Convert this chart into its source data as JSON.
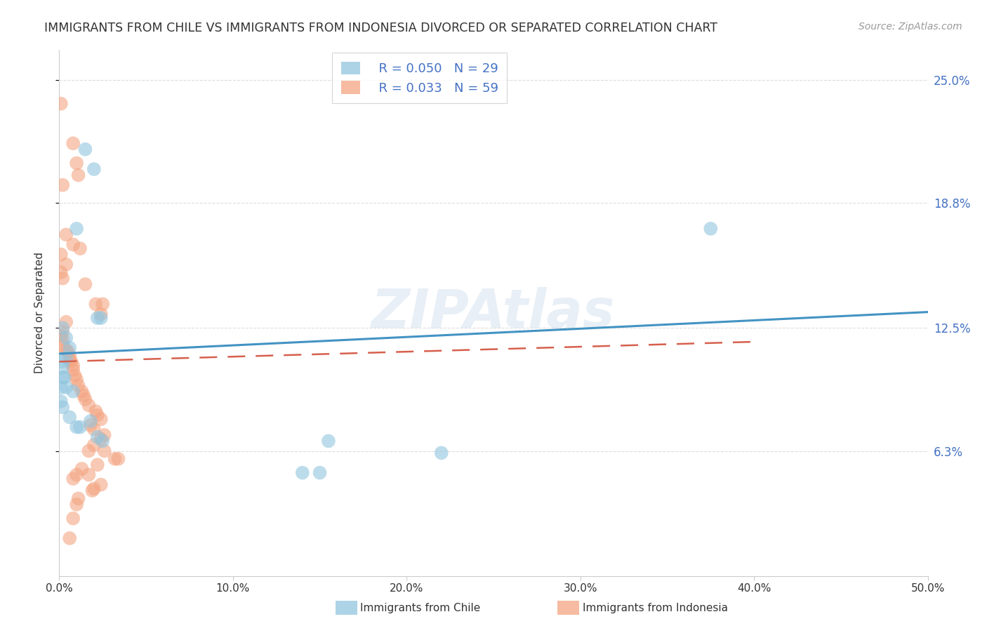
{
  "title": "IMMIGRANTS FROM CHILE VS IMMIGRANTS FROM INDONESIA DIVORCED OR SEPARATED CORRELATION CHART",
  "source": "Source: ZipAtlas.com",
  "ylabel": "Divorced or Separated",
  "xlabel_ticks": [
    "0.0%",
    "10.0%",
    "20.0%",
    "30.0%",
    "40.0%",
    "50.0%"
  ],
  "xlabel_vals": [
    0.0,
    0.1,
    0.2,
    0.3,
    0.4,
    0.5
  ],
  "ytick_labels": [
    "6.3%",
    "12.5%",
    "18.8%",
    "25.0%"
  ],
  "ytick_vals": [
    0.063,
    0.125,
    0.188,
    0.25
  ],
  "xlim": [
    0.0,
    0.5
  ],
  "ylim": [
    0.0,
    0.265
  ],
  "legend_chile_R": "0.050",
  "legend_chile_N": "29",
  "legend_indonesia_R": "0.033",
  "legend_indonesia_N": "59",
  "chile_color": "#92c5de",
  "indonesia_color": "#f4a582",
  "trendline_chile_color": "#4393c3",
  "trendline_indonesia_color": "#d6604d",
  "watermark": "ZIPAtlas",
  "chile_scatter": [
    [
      0.002,
      0.125
    ],
    [
      0.01,
      0.175
    ],
    [
      0.015,
      0.215
    ],
    [
      0.02,
      0.205
    ],
    [
      0.022,
      0.13
    ],
    [
      0.024,
      0.13
    ],
    [
      0.004,
      0.12
    ],
    [
      0.006,
      0.115
    ],
    [
      0.004,
      0.11
    ],
    [
      0.002,
      0.108
    ],
    [
      0.002,
      0.105
    ],
    [
      0.002,
      0.1
    ],
    [
      0.003,
      0.1
    ],
    [
      0.001,
      0.095
    ],
    [
      0.004,
      0.095
    ],
    [
      0.008,
      0.093
    ],
    [
      0.001,
      0.088
    ],
    [
      0.002,
      0.085
    ],
    [
      0.006,
      0.08
    ],
    [
      0.01,
      0.075
    ],
    [
      0.012,
      0.075
    ],
    [
      0.018,
      0.078
    ],
    [
      0.022,
      0.07
    ],
    [
      0.025,
      0.068
    ],
    [
      0.375,
      0.175
    ],
    [
      0.155,
      0.068
    ],
    [
      0.22,
      0.062
    ],
    [
      0.14,
      0.052
    ],
    [
      0.15,
      0.052
    ]
  ],
  "indonesia_scatter": [
    [
      0.001,
      0.238
    ],
    [
      0.008,
      0.218
    ],
    [
      0.01,
      0.208
    ],
    [
      0.011,
      0.202
    ],
    [
      0.002,
      0.197
    ],
    [
      0.004,
      0.172
    ],
    [
      0.008,
      0.167
    ],
    [
      0.012,
      0.165
    ],
    [
      0.001,
      0.162
    ],
    [
      0.004,
      0.157
    ],
    [
      0.001,
      0.153
    ],
    [
      0.002,
      0.15
    ],
    [
      0.015,
      0.147
    ],
    [
      0.021,
      0.137
    ],
    [
      0.025,
      0.137
    ],
    [
      0.024,
      0.132
    ],
    [
      0.004,
      0.128
    ],
    [
      0.002,
      0.123
    ],
    [
      0.001,
      0.121
    ],
    [
      0.002,
      0.119
    ],
    [
      0.002,
      0.116
    ],
    [
      0.004,
      0.114
    ],
    [
      0.005,
      0.113
    ],
    [
      0.006,
      0.111
    ],
    [
      0.006,
      0.109
    ],
    [
      0.007,
      0.108
    ],
    [
      0.008,
      0.106
    ],
    [
      0.008,
      0.104
    ],
    [
      0.009,
      0.101
    ],
    [
      0.01,
      0.099
    ],
    [
      0.011,
      0.096
    ],
    [
      0.013,
      0.093
    ],
    [
      0.014,
      0.091
    ],
    [
      0.015,
      0.089
    ],
    [
      0.017,
      0.086
    ],
    [
      0.021,
      0.083
    ],
    [
      0.022,
      0.081
    ],
    [
      0.024,
      0.079
    ],
    [
      0.018,
      0.076
    ],
    [
      0.02,
      0.074
    ],
    [
      0.026,
      0.071
    ],
    [
      0.024,
      0.069
    ],
    [
      0.02,
      0.066
    ],
    [
      0.017,
      0.063
    ],
    [
      0.026,
      0.063
    ],
    [
      0.032,
      0.059
    ],
    [
      0.034,
      0.059
    ],
    [
      0.022,
      0.056
    ],
    [
      0.013,
      0.054
    ],
    [
      0.017,
      0.051
    ],
    [
      0.01,
      0.051
    ],
    [
      0.008,
      0.049
    ],
    [
      0.024,
      0.046
    ],
    [
      0.02,
      0.044
    ],
    [
      0.019,
      0.043
    ],
    [
      0.011,
      0.039
    ],
    [
      0.01,
      0.036
    ],
    [
      0.008,
      0.029
    ],
    [
      0.006,
      0.019
    ]
  ],
  "chile_trend_x": [
    0.0,
    0.5
  ],
  "chile_trend_y": [
    0.112,
    0.133
  ],
  "indonesia_trend_x": [
    0.0,
    0.4
  ],
  "indonesia_trend_y": [
    0.108,
    0.118
  ],
  "background_color": "#ffffff",
  "grid_color": "#dddddd",
  "spine_color": "#cccccc",
  "title_color": "#333333",
  "source_color": "#999999",
  "axis_label_color": "#333333",
  "right_tick_color": "#4472c4"
}
